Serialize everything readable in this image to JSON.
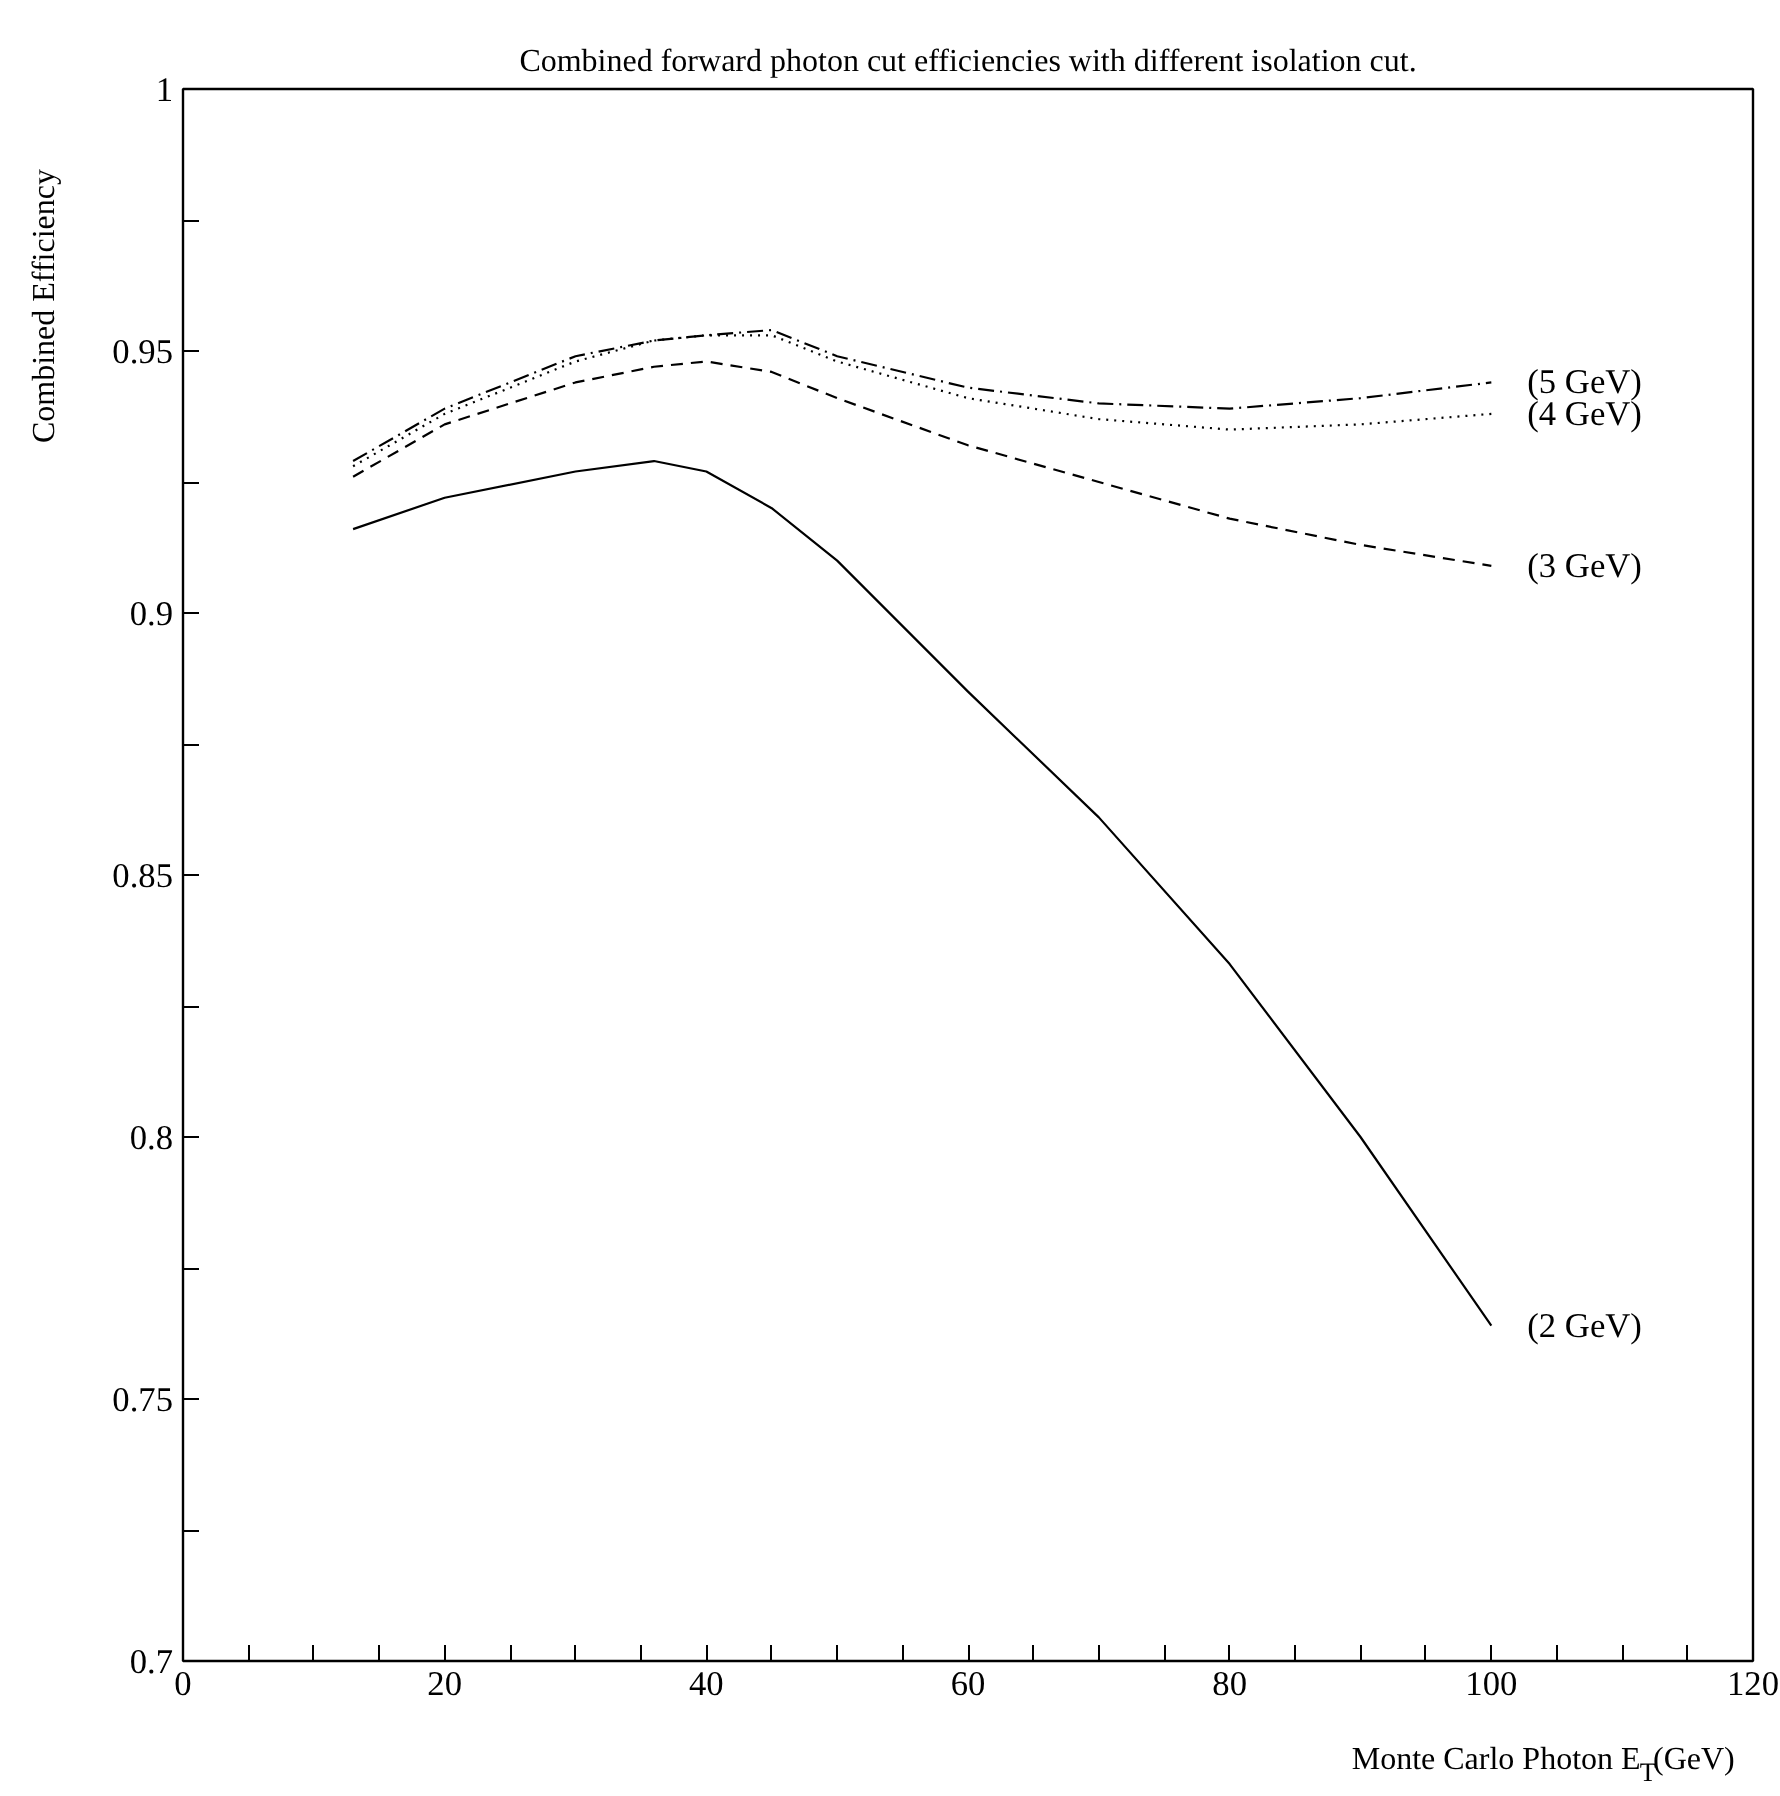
{
  "chart_data": {
    "type": "line",
    "title": "Combined forward photon cut efficiencies with different isolation cut.",
    "xlabel": "Monte Carlo Photon E$_{T}$(GeV)",
    "ylabel": "Combined Efficiency",
    "x": [
      13,
      20,
      30,
      36,
      40,
      45,
      50,
      60,
      70,
      80,
      90,
      100
    ],
    "series": [
      {
        "name": "(2 GeV)",
        "color": "#000000",
        "line_style": "solid",
        "values": [
          0.916,
          0.922,
          0.927,
          0.929,
          0.927,
          0.92,
          0.91,
          0.885,
          0.861,
          0.833,
          0.8,
          0.764
        ]
      },
      {
        "name": "(3 GeV)",
        "color": "#000000",
        "line_style": "dashed",
        "values": [
          0.926,
          0.936,
          0.944,
          0.947,
          0.948,
          0.946,
          0.941,
          0.932,
          0.925,
          0.918,
          0.913,
          0.909
        ]
      },
      {
        "name": "(4 GeV)",
        "color": "#000000",
        "line_style": "dotted",
        "values": [
          0.928,
          0.938,
          0.948,
          0.952,
          0.953,
          0.953,
          0.948,
          0.941,
          0.937,
          0.935,
          0.936,
          0.938
        ]
      },
      {
        "name": "(5 GeV)",
        "color": "#000000",
        "line_style": "dashdot",
        "values": [
          0.929,
          0.939,
          0.949,
          0.952,
          0.953,
          0.954,
          0.949,
          0.943,
          0.94,
          0.939,
          0.941,
          0.944
        ]
      }
    ],
    "xlim": [
      0,
      120
    ],
    "ylim": [
      0.7,
      1
    ],
    "xticks": [
      0,
      {
        "value": 5,
        "label": null
      },
      {
        "value": 10,
        "label": null
      },
      {
        "value": 15,
        "label": null
      },
      20,
      {
        "value": 25,
        "label": null
      },
      {
        "value": 30,
        "label": null
      },
      {
        "value": 35,
        "label": null
      },
      40,
      {
        "value": 45,
        "label": null
      },
      {
        "value": 50,
        "label": null
      },
      {
        "value": 55,
        "label": null
      },
      60,
      {
        "value": 65,
        "label": null
      },
      {
        "value": 70,
        "label": null
      },
      {
        "value": 75,
        "label": null
      },
      80,
      {
        "value": 85,
        "label": null
      },
      {
        "value": 90,
        "label": null
      },
      {
        "value": 95,
        "label": null
      },
      100,
      {
        "value": 105,
        "label": null
      },
      {
        "value": 110,
        "label": null
      },
      {
        "value": 115,
        "label": null
      },
      120
    ],
    "yticks": [
      0.7,
      {
        "value": 0.725,
        "label": null
      },
      0.75,
      {
        "value": 0.775,
        "label": null
      },
      0.8,
      {
        "value": 0.825,
        "label": null
      },
      0.85,
      {
        "value": 0.875,
        "label": null
      },
      0.9,
      {
        "value": 0.925,
        "label": null
      },
      0.95,
      {
        "value": 0.975,
        "label": null
      },
      1
    ],
    "grid": false
  }
}
